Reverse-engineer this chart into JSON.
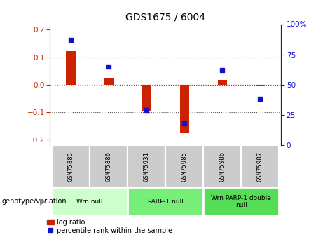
{
  "title": "GDS1675 / 6004",
  "samples": [
    "GSM75885",
    "GSM75886",
    "GSM75931",
    "GSM75985",
    "GSM75986",
    "GSM75987"
  ],
  "log_ratios": [
    0.122,
    0.025,
    -0.095,
    -0.175,
    0.018,
    -0.003
  ],
  "percentile_ranks": [
    87,
    65,
    29,
    18,
    62,
    38
  ],
  "bar_color": "#cc2200",
  "dot_color": "#1111cc",
  "groups": [
    {
      "label": "Wrn null",
      "span": [
        0,
        2
      ],
      "color": "#ccffcc"
    },
    {
      "label": "PARP-1 null",
      "span": [
        2,
        4
      ],
      "color": "#77ee77"
    },
    {
      "label": "Wrn PARP-1 double\nnull",
      "span": [
        4,
        6
      ],
      "color": "#55dd55"
    }
  ],
  "ylim_left": [
    -0.22,
    0.22
  ],
  "ylim_right": [
    0,
    100
  ],
  "yticks_left": [
    -0.2,
    -0.1,
    0,
    0.1,
    0.2
  ],
  "yticks_right": [
    0,
    25,
    50,
    75,
    100
  ],
  "hline_color": "#cc2200",
  "dotted_color": "#555555",
  "bg_color": "#ffffff",
  "plot_bg_color": "#ffffff",
  "sample_box_color": "#cccccc",
  "genotype_label": "genotype/variation",
  "legend_log_ratio": "log ratio",
  "legend_percentile": "percentile rank within the sample",
  "bar_width": 0.25,
  "right_top_label": "100%"
}
